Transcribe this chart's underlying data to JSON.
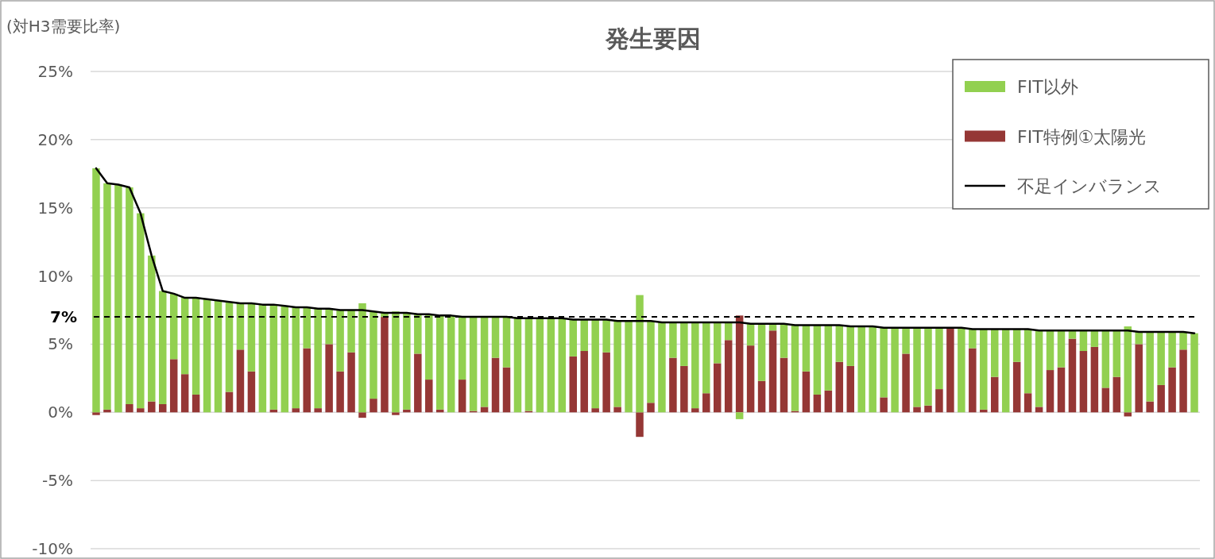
{
  "chart_data": {
    "type": "bar",
    "title": "発生要因",
    "ylabel": "(対H3需要比率)",
    "stacked": true,
    "grid": "y",
    "legend": "top right",
    "categories": [
      null,
      null,
      null,
      null,
      null,
      null,
      null,
      null,
      null,
      null,
      null,
      null,
      null,
      null,
      null,
      null,
      null,
      null,
      null,
      null,
      null,
      null,
      null,
      null,
      null,
      null,
      null,
      null,
      null,
      null,
      null,
      null,
      null,
      null,
      null,
      null,
      null,
      null,
      null,
      null,
      null,
      null,
      null,
      null,
      null,
      null,
      null,
      null,
      null,
      null,
      null,
      null,
      null,
      null,
      null,
      null,
      null,
      null,
      null,
      null,
      null,
      null,
      null,
      null,
      null,
      null,
      null,
      null,
      null,
      null,
      null,
      null,
      null,
      null,
      null,
      null,
      null,
      null,
      null,
      null,
      null,
      null,
      null,
      null,
      null,
      null,
      null,
      null,
      null,
      null,
      null,
      null,
      null,
      null,
      null,
      null,
      null,
      null,
      null,
      null
    ],
    "ylim": [
      -10,
      25
    ],
    "yticks": [
      {
        "value": -10,
        "label": "-10%"
      },
      {
        "value": -5,
        "label": "-5%"
      },
      {
        "value": 0,
        "label": "0%"
      },
      {
        "value": 5,
        "label": "5%"
      },
      {
        "value": 10,
        "label": "10%"
      },
      {
        "value": 15,
        "label": "15%"
      },
      {
        "value": 20,
        "label": "20%"
      },
      {
        "value": 25,
        "label": "25%"
      }
    ],
    "ref_lines": [
      {
        "axis": "y",
        "value": 7,
        "label": "7%",
        "color": "#000000",
        "line_style": "dashed"
      }
    ],
    "series": [
      {
        "name": "FIT特例①太陽光",
        "color": "#953735",
        "values": [
          -0.2,
          0.2,
          0,
          0.6,
          0.3,
          0.8,
          0.6,
          3.9,
          2.8,
          1.3,
          0,
          0,
          1.5,
          4.6,
          3.0,
          0,
          0.2,
          0,
          0.3,
          4.7,
          0.3,
          5.0,
          3.0,
          4.4,
          -0.4,
          1.0,
          7.0,
          -0.2,
          0.2,
          4.3,
          2.4,
          0.2,
          0,
          2.4,
          0.1,
          0.4,
          4.0,
          3.3,
          0,
          0.1,
          0,
          0,
          0,
          4.1,
          4.5,
          0.3,
          4.4,
          0.4,
          0,
          -1.8,
          0.7,
          0,
          4.0,
          3.4,
          0.3,
          1.4,
          3.6,
          5.3,
          7.1,
          4.9,
          2.3,
          6.0,
          4.0,
          0.1,
          3.0,
          1.3,
          1.6,
          3.7,
          3.4,
          0,
          0,
          1.1,
          0,
          4.3,
          0.4,
          0.5,
          1.7,
          6.2,
          0,
          4.7,
          0.2,
          2.6,
          0,
          3.7,
          1.4,
          0.4,
          3.1,
          3.3,
          5.4,
          4.5,
          4.8,
          1.8,
          2.6,
          -0.3,
          5.0,
          0.8,
          2.0,
          3.3,
          4.6,
          0
        ]
      },
      {
        "name": "FIT以外",
        "color": "#92d050",
        "values": [
          17.9,
          16.6,
          16.7,
          15.9,
          14.3,
          10.7,
          8.3,
          4.8,
          5.6,
          7.1,
          8.3,
          8.2,
          6.6,
          3.4,
          5.0,
          7.9,
          7.7,
          7.8,
          7.4,
          3.0,
          7.3,
          2.6,
          4.5,
          3.1,
          8.0,
          6.4,
          0.3,
          7.4,
          7.1,
          2.9,
          4.8,
          6.9,
          7.1,
          4.6,
          6.9,
          6.6,
          3.0,
          3.7,
          6.9,
          6.8,
          6.9,
          6.9,
          6.9,
          2.7,
          2.3,
          6.5,
          2.4,
          6.3,
          6.7,
          8.6,
          6.0,
          6.6,
          2.6,
          3.2,
          6.3,
          5.2,
          3.0,
          1.3,
          -0.5,
          1.6,
          4.2,
          0.5,
          2.5,
          6.3,
          3.4,
          5.1,
          4.8,
          2.7,
          2.9,
          6.3,
          6.3,
          5.1,
          6.2,
          1.9,
          5.8,
          5.7,
          4.5,
          0,
          6.2,
          1.4,
          5.9,
          3.5,
          6.1,
          2.4,
          4.7,
          5.6,
          2.9,
          2.7,
          0.6,
          1.5,
          1.2,
          4.2,
          3.4,
          6.3,
          0.9,
          5.1,
          3.9,
          2.6,
          1.3,
          5.8
        ]
      },
      {
        "name": "不足インバランス",
        "type": "line",
        "color": "#000000",
        "values": [
          17.9,
          16.8,
          16.7,
          16.5,
          14.6,
          11.5,
          8.9,
          8.7,
          8.4,
          8.4,
          8.3,
          8.2,
          8.1,
          8.0,
          8.0,
          7.9,
          7.9,
          7.8,
          7.7,
          7.7,
          7.6,
          7.6,
          7.5,
          7.5,
          7.5,
          7.4,
          7.3,
          7.3,
          7.3,
          7.2,
          7.2,
          7.1,
          7.1,
          7.0,
          7.0,
          7.0,
          7.0,
          7.0,
          6.9,
          6.9,
          6.9,
          6.9,
          6.9,
          6.8,
          6.8,
          6.8,
          6.8,
          6.7,
          6.7,
          6.7,
          6.7,
          6.6,
          6.6,
          6.6,
          6.6,
          6.6,
          6.6,
          6.6,
          6.6,
          6.5,
          6.5,
          6.5,
          6.5,
          6.4,
          6.4,
          6.4,
          6.4,
          6.4,
          6.3,
          6.3,
          6.3,
          6.2,
          6.2,
          6.2,
          6.2,
          6.2,
          6.2,
          6.2,
          6.2,
          6.1,
          6.1,
          6.1,
          6.1,
          6.1,
          6.1,
          6.0,
          6.0,
          6.0,
          6.0,
          6.0,
          6.0,
          6.0,
          6.0,
          6.0,
          5.9,
          5.9,
          5.9,
          5.9,
          5.9,
          5.8
        ]
      }
    ]
  }
}
